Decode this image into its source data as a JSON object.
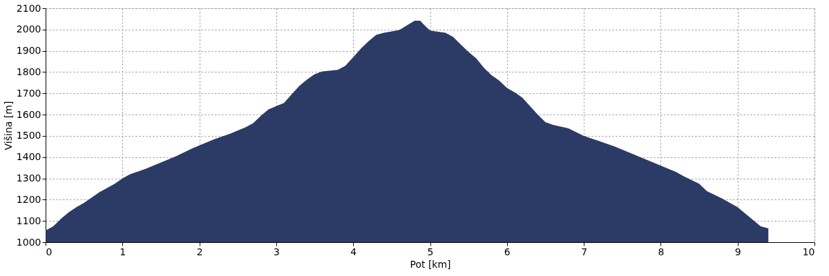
{
  "chart_data": {
    "type": "area",
    "xlabel": "Pot [km]",
    "ylabel": "Višina [m]",
    "x": [
      0,
      0.1,
      0.2,
      0.3,
      0.4,
      0.5,
      0.6,
      0.7,
      0.8,
      0.9,
      1.0,
      1.1,
      1.3,
      1.5,
      1.7,
      1.9,
      2.0,
      2.2,
      2.4,
      2.6,
      2.7,
      2.8,
      2.9,
      3.0,
      3.1,
      3.2,
      3.3,
      3.4,
      3.5,
      3.6,
      3.8,
      3.9,
      4.0,
      4.1,
      4.2,
      4.3,
      4.4,
      4.6,
      4.7,
      4.8,
      4.87,
      4.95,
      5.0,
      5.2,
      5.3,
      5.4,
      5.5,
      5.6,
      5.7,
      5.8,
      5.9,
      6.0,
      6.1,
      6.2,
      6.3,
      6.4,
      6.5,
      6.6,
      6.8,
      7.0,
      7.2,
      7.4,
      7.6,
      7.8,
      8.0,
      8.2,
      8.3,
      8.5,
      8.6,
      8.8,
      9.0,
      9.1,
      9.2,
      9.3,
      9.4
    ],
    "series": [
      {
        "color": "#2c3a66",
        "values": [
          1055,
          1075,
          1110,
          1140,
          1165,
          1185,
          1210,
          1235,
          1255,
          1275,
          1300,
          1320,
          1345,
          1375,
          1405,
          1440,
          1455,
          1485,
          1510,
          1540,
          1560,
          1595,
          1625,
          1640,
          1655,
          1695,
          1735,
          1765,
          1790,
          1803,
          1810,
          1830,
          1870,
          1910,
          1945,
          1975,
          1985,
          1998,
          2020,
          2042,
          2042,
          2012,
          1995,
          1985,
          1965,
          1930,
          1895,
          1865,
          1820,
          1785,
          1760,
          1725,
          1705,
          1680,
          1640,
          1600,
          1565,
          1552,
          1535,
          1500,
          1475,
          1450,
          1420,
          1390,
          1360,
          1330,
          1310,
          1275,
          1240,
          1205,
          1165,
          1135,
          1105,
          1075,
          1065
        ]
      }
    ],
    "xlim": [
      0,
      10
    ],
    "xticks": [
      0,
      1,
      2,
      3,
      4,
      5,
      6,
      7,
      8,
      9,
      10
    ],
    "ylim": [
      1000,
      2100
    ],
    "yticks": [
      1000,
      1100,
      1200,
      1300,
      1400,
      1500,
      1600,
      1700,
      1800,
      1900,
      2000,
      2100
    ],
    "grid": true
  }
}
